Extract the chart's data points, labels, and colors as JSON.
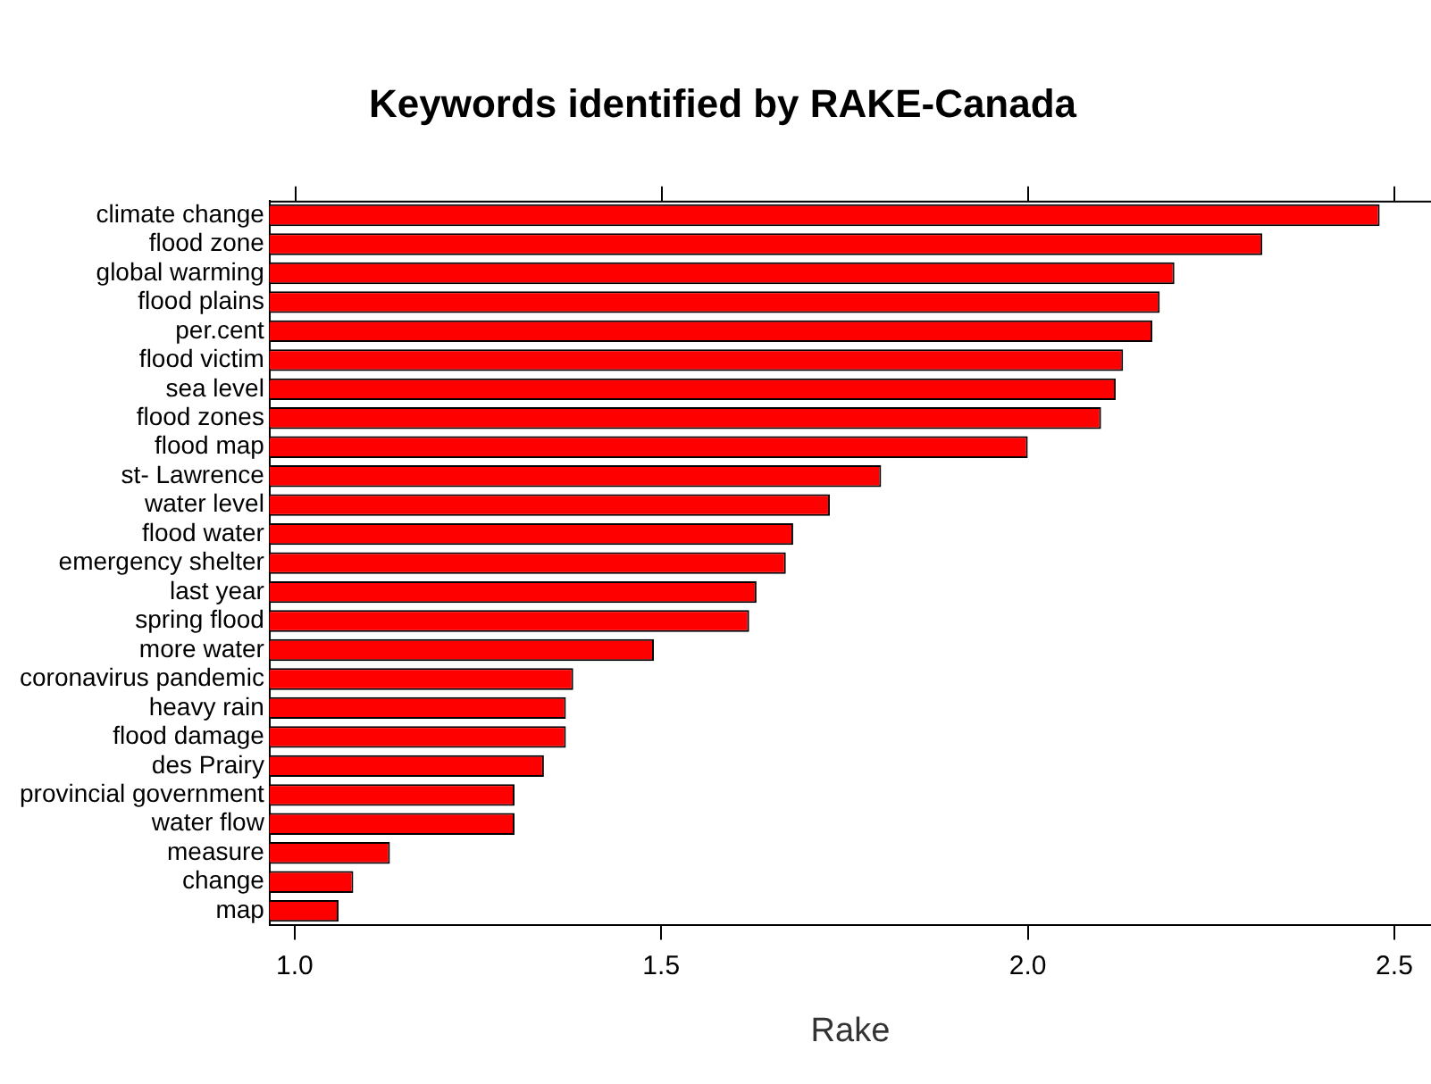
{
  "chart_data": {
    "type": "bar",
    "orientation": "horizontal",
    "title": "Keywords identified by RAKE-Canada",
    "xlabel": "Rake",
    "categories": [
      "climate change",
      "flood zone",
      "global warming",
      "flood plains",
      "per.cent",
      "flood victim",
      "sea level",
      "flood zones",
      "flood map",
      "st- Lawrence",
      "water level",
      "flood water",
      "emergency shelter",
      "last year",
      "spring flood",
      "more water",
      "coronavirus pandemic",
      "heavy rain",
      "flood damage",
      "des Prairy",
      "provincial government",
      "water flow",
      "measure",
      "change",
      "map"
    ],
    "values": [
      2.48,
      2.32,
      2.2,
      2.18,
      2.17,
      2.13,
      2.12,
      2.1,
      2.0,
      1.8,
      1.73,
      1.68,
      1.67,
      1.63,
      1.62,
      1.49,
      1.38,
      1.37,
      1.37,
      1.34,
      1.3,
      1.3,
      1.13,
      1.08,
      1.06
    ],
    "color": "#ff0000",
    "xlim": [
      0.966,
      2.55
    ],
    "xticks": [
      {
        "value": 1.0,
        "label": "1.0"
      },
      {
        "value": 1.5,
        "label": "1.5"
      },
      {
        "value": 2.0,
        "label": "2.0"
      },
      {
        "value": 2.5,
        "label": "2.5"
      }
    ],
    "grid": false,
    "legend": false
  }
}
